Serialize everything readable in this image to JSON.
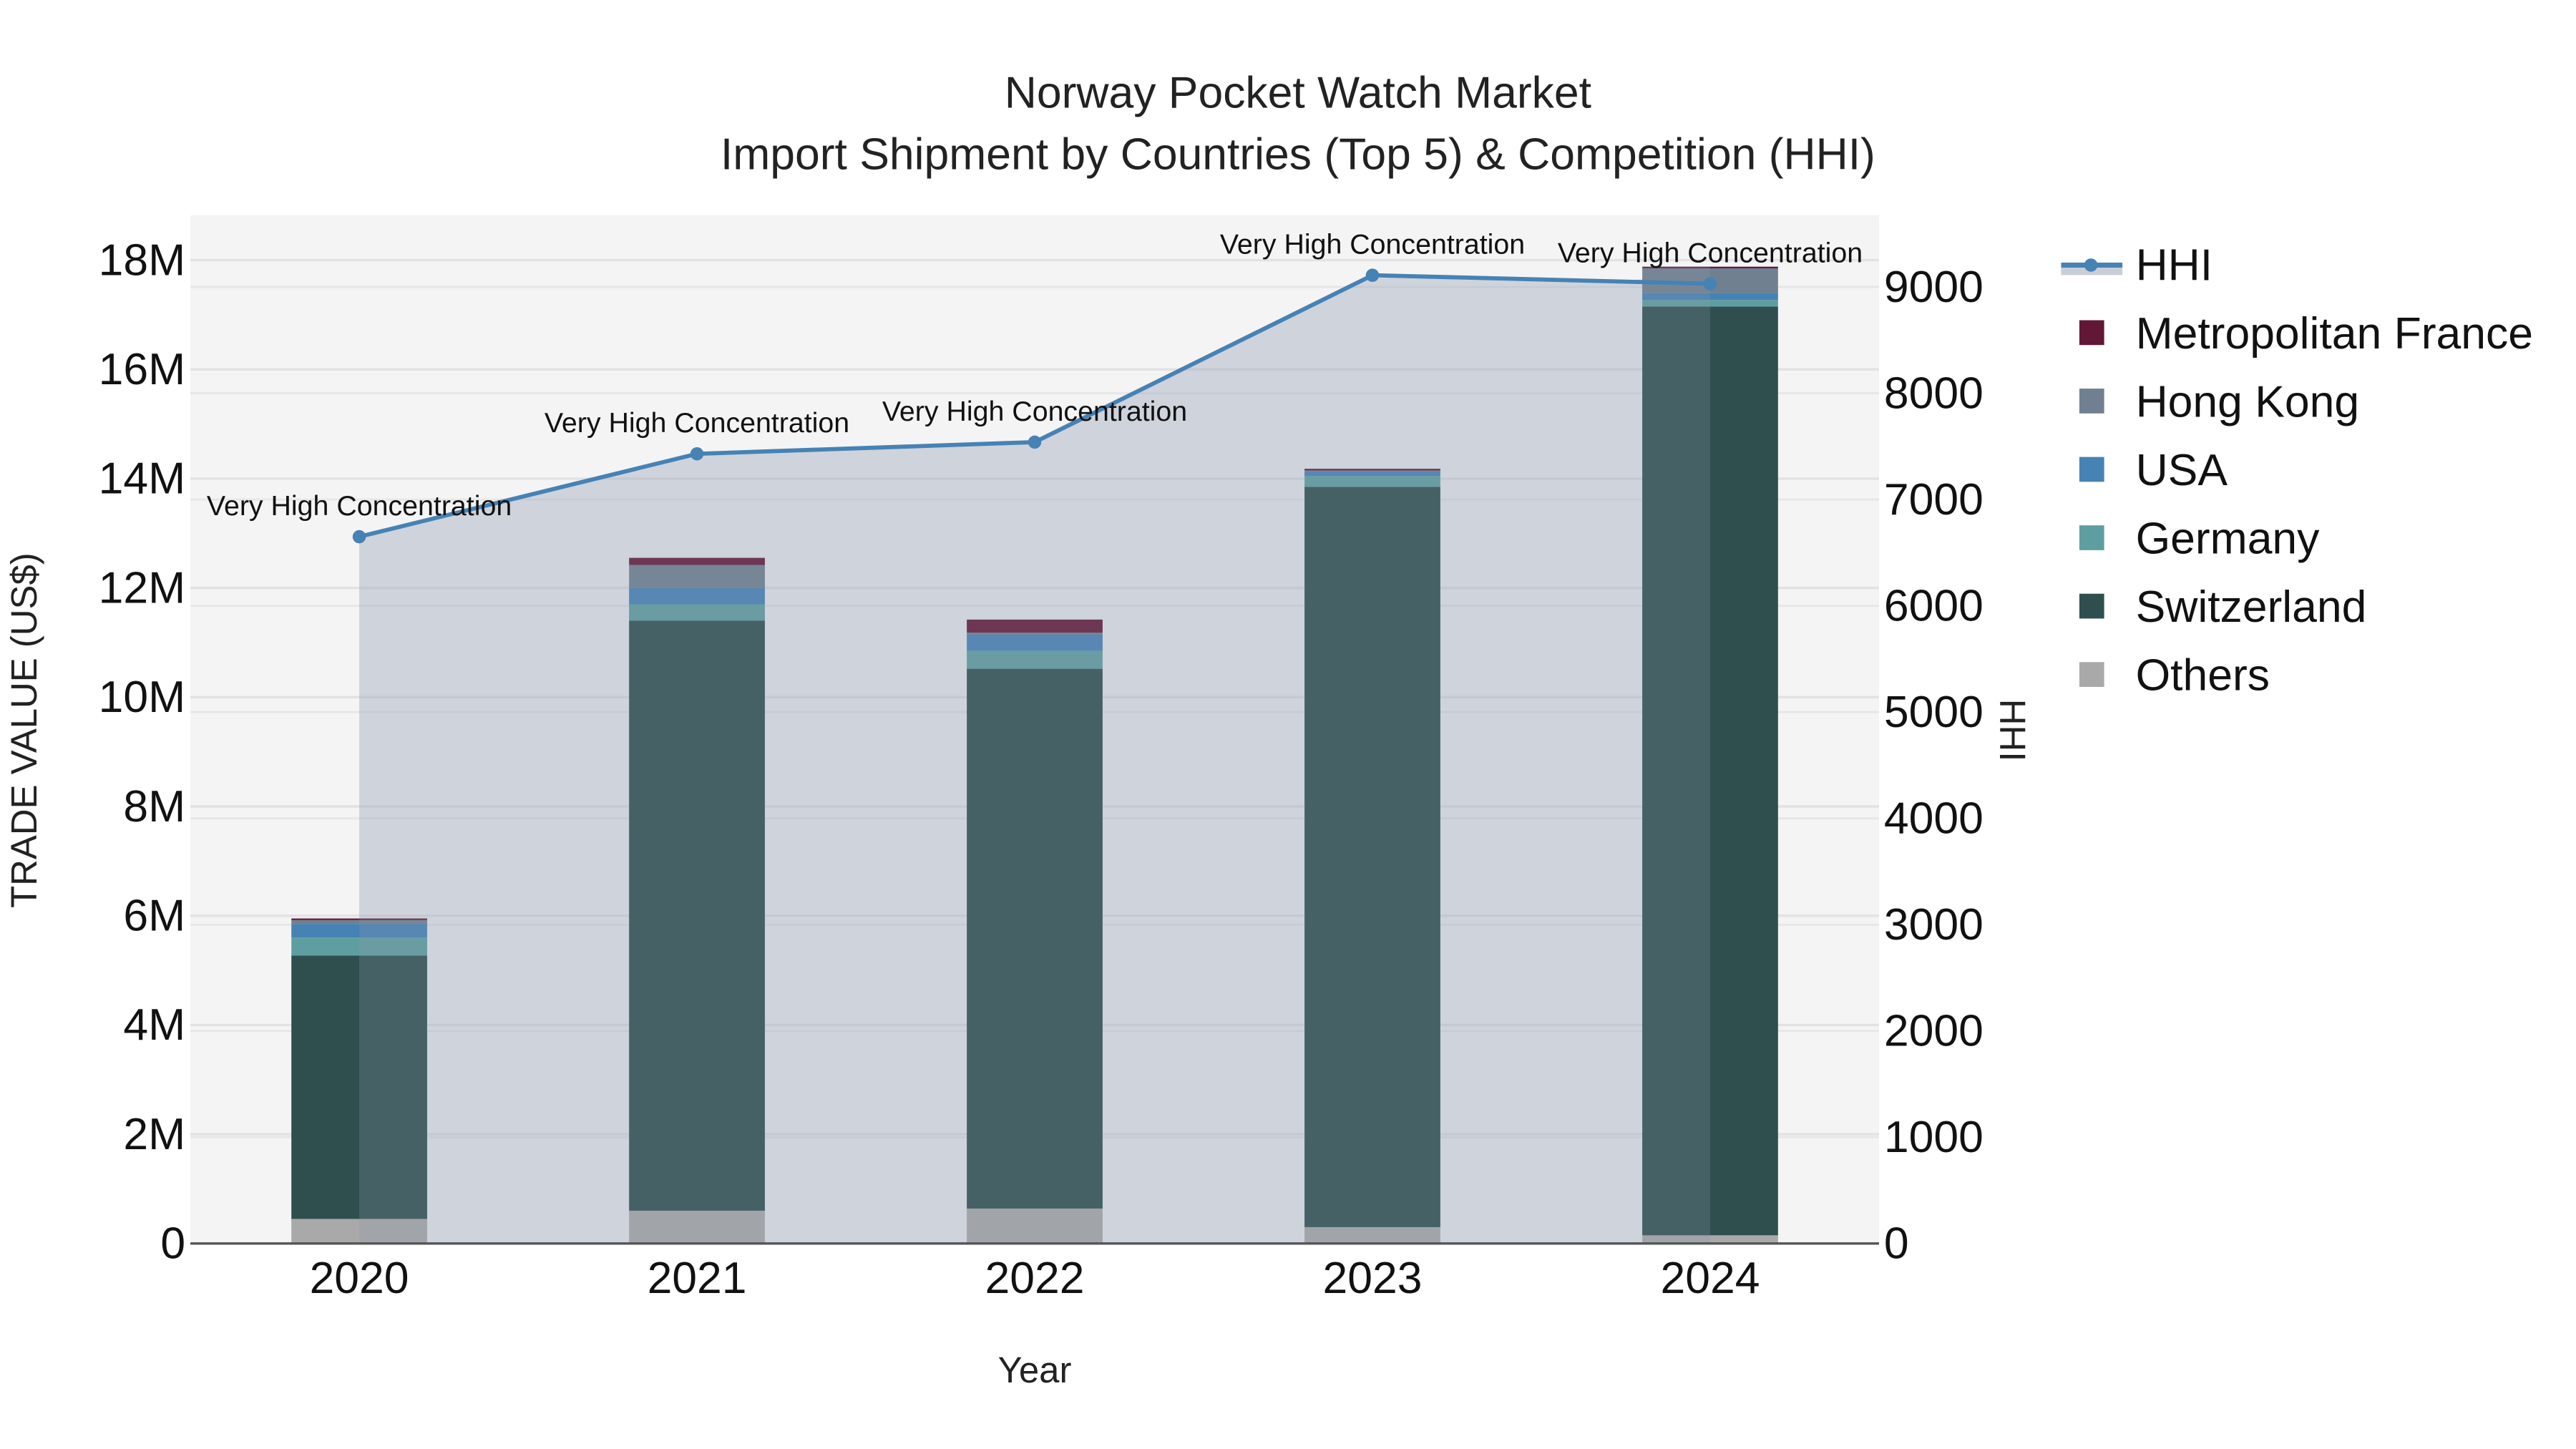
{
  "chart_data": {
    "type": "bar",
    "subtype": "stacked bar + line (dual axis)",
    "title": "Norway Pocket Watch Market",
    "subtitle": "Import Shipment by Countries (Top 5) & Competition (HHI)",
    "xlabel": "Year",
    "ylabel": "TRADE VALUE (US$)",
    "y2label": "HHI",
    "categories": [
      "2020",
      "2021",
      "2022",
      "2023",
      "2024"
    ],
    "ylim": [
      0,
      18800000
    ],
    "y_ticks": [
      "0",
      "2M",
      "4M",
      "6M",
      "8M",
      "10M",
      "12M",
      "14M",
      "16M",
      "18M"
    ],
    "y2lim": [
      0,
      9650
    ],
    "y2_ticks": [
      "0",
      "1000",
      "2000",
      "3000",
      "4000",
      "5000",
      "6000",
      "7000",
      "8000",
      "9000"
    ],
    "grid": true,
    "legend_position": "right",
    "series": [
      {
        "name": "Others",
        "color": "#A9A9A9",
        "values": [
          450000,
          600000,
          640000,
          300000,
          150000
        ]
      },
      {
        "name": "Switzerland",
        "color": "#2F4F4F",
        "values": [
          4820000,
          10800000,
          9880000,
          13550000,
          17000000
        ]
      },
      {
        "name": "Germany",
        "color": "#5F9EA0",
        "values": [
          330000,
          300000,
          330000,
          200000,
          120000
        ]
      },
      {
        "name": "USA",
        "color": "#4682B4",
        "values": [
          250000,
          300000,
          300000,
          80000,
          130000
        ]
      },
      {
        "name": "Hong Kong",
        "color": "#708090",
        "values": [
          70000,
          420000,
          30000,
          20000,
          450000
        ]
      },
      {
        "name": "Metropolitan France",
        "color": "#631737",
        "values": [
          30000,
          130000,
          240000,
          30000,
          30000
        ]
      }
    ],
    "line_series": {
      "name": "HHI",
      "color": "#4682B4",
      "fill": "rgba(112,128,160,0.3)",
      "values": [
        6650,
        7430,
        7540,
        9110,
        9030
      ],
      "annotations": [
        "Very High Concentration",
        "Very High Concentration",
        "Very High Concentration",
        "Very High Concentration",
        "Very High Concentration"
      ]
    }
  },
  "legend": {
    "items": [
      {
        "label": "HHI",
        "color": "#4682B4",
        "kind": "line"
      },
      {
        "label": "Metropolitan France",
        "color": "#631737",
        "kind": "box"
      },
      {
        "label": "Hong Kong",
        "color": "#708090",
        "kind": "box"
      },
      {
        "label": "USA",
        "color": "#4682B4",
        "kind": "box"
      },
      {
        "label": "Germany",
        "color": "#5F9EA0",
        "kind": "box"
      },
      {
        "label": "Switzerland",
        "color": "#2F4F4F",
        "kind": "box"
      },
      {
        "label": "Others",
        "color": "#A9A9A9",
        "kind": "box"
      }
    ]
  },
  "colors": {
    "plot_bg": "#F4F4F4",
    "grid": "#E2E2E2",
    "axis_line": "#555555"
  }
}
